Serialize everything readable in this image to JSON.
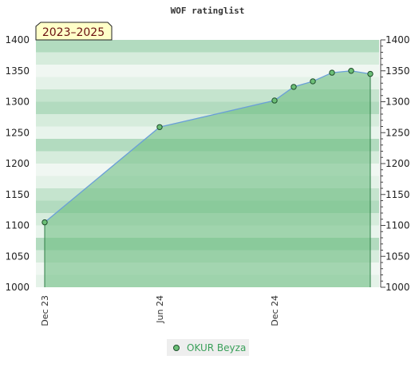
{
  "chart_data": {
    "type": "area",
    "title": "WOF ratinglist",
    "period_badge": "2023–2025",
    "ylim": [
      1000,
      1400
    ],
    "y_ticks": [
      1000,
      1050,
      1100,
      1150,
      1200,
      1250,
      1300,
      1350,
      1400
    ],
    "x_ticks": [
      "Dec 23",
      "Jun 24",
      "Dec 24"
    ],
    "x": [
      "2023-12",
      "2024-06",
      "2024-12",
      "2025-01",
      "2025-02",
      "2025-03",
      "2025-04",
      "2025-05"
    ],
    "series": [
      {
        "name": "OKUR Beyza",
        "values": [
          1105,
          1259,
          1302,
          1324,
          1333,
          1347,
          1350,
          1345
        ]
      }
    ],
    "grid": true,
    "legend_position": "bottom-center",
    "colors": {
      "line": "#6a9fd8",
      "area": "#6fbe84",
      "marker_fill": "#6cbf77",
      "marker_stroke": "#1d4d2a",
      "legend_text": "#3aa05a",
      "badge_bg": "#ffffc8"
    }
  }
}
